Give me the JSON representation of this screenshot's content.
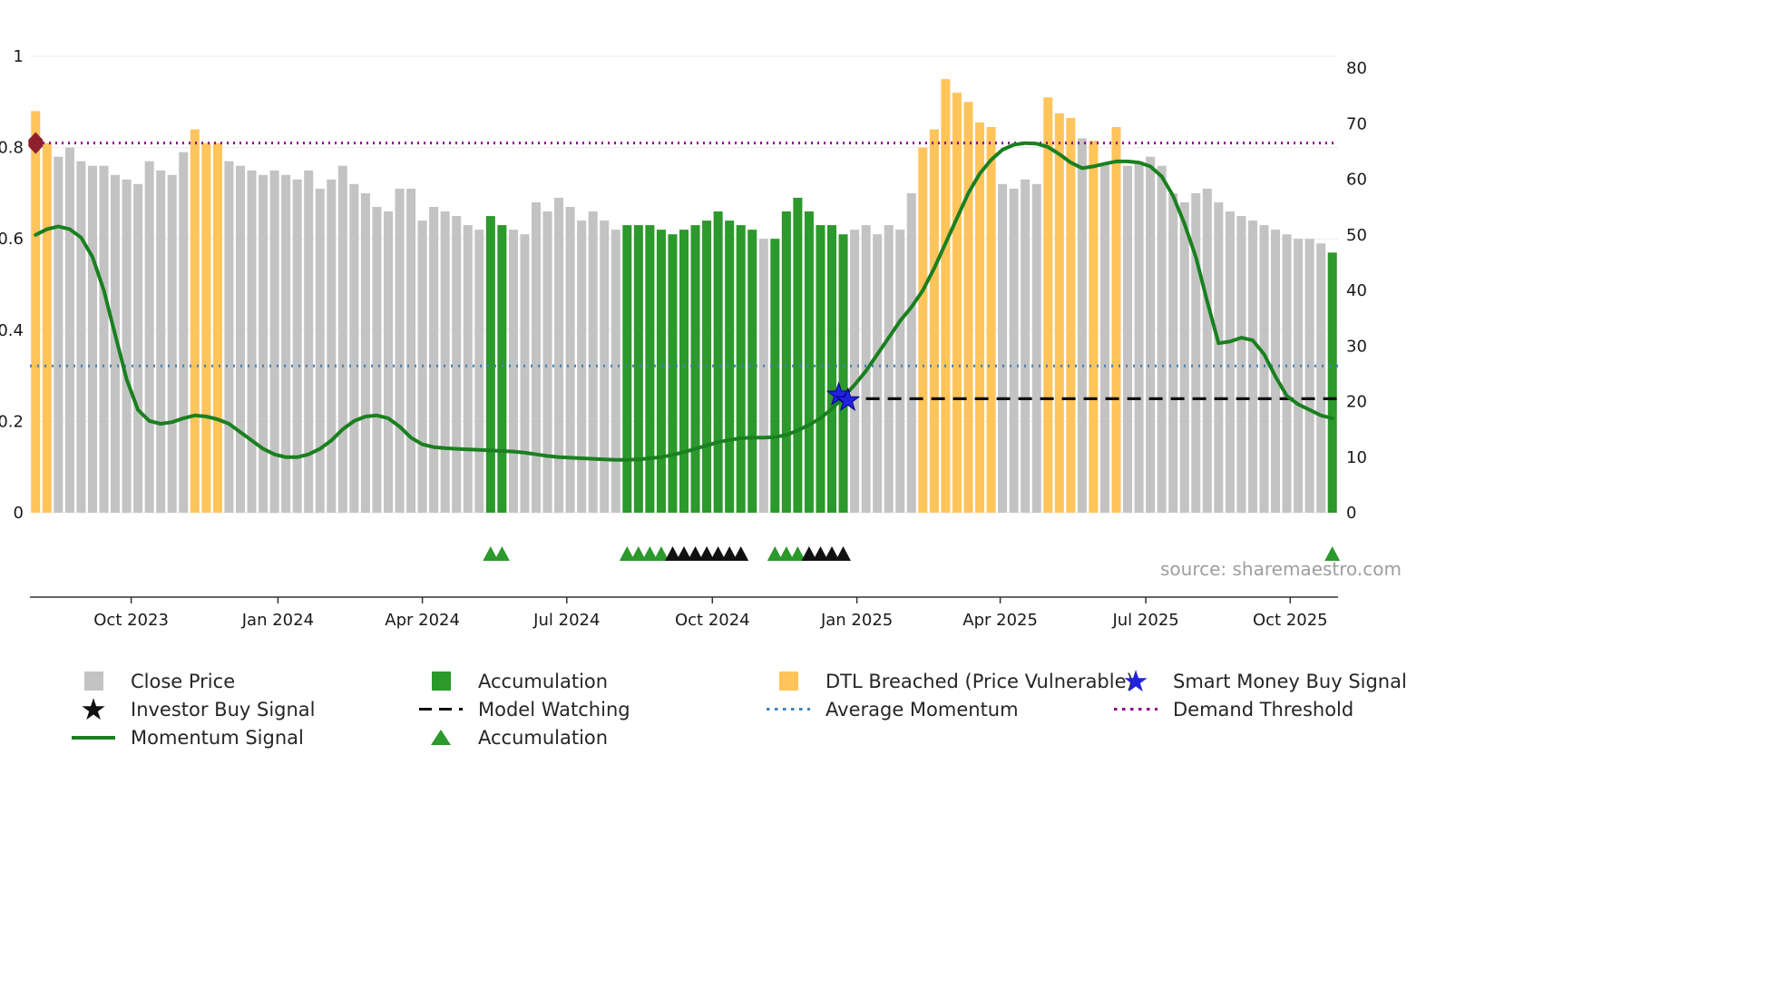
{
  "chart_data": {
    "type": "bar+line",
    "title": "",
    "source": "source: sharemaestro.com",
    "left_axis": {
      "min": 0,
      "max": 1,
      "tick_values": [
        0,
        0.2,
        0.4,
        0.6,
        0.8,
        1
      ],
      "tick_labels": [
        "0",
        "0.2",
        "0.4",
        "0.6",
        "0.8",
        "1"
      ]
    },
    "right_axis": {
      "min": 0,
      "max": 80,
      "tick_values": [
        0,
        10,
        20,
        30,
        40,
        50,
        60,
        70,
        80
      ],
      "tick_labels": [
        "0",
        "10",
        "20",
        "30",
        "40",
        "50",
        "60",
        "70",
        "80"
      ]
    },
    "x_axis": {
      "tick_labels": [
        "Oct 2023",
        "Jan 2024",
        "Apr 2024",
        "Jul 2024",
        "Oct 2024",
        "Jan 2025",
        "Apr 2025",
        "Jul 2025",
        "Oct 2025"
      ],
      "tick_positions": [
        8.4,
        21.3,
        34.0,
        46.7,
        59.5,
        72.2,
        84.8,
        97.6,
        110.3
      ]
    },
    "bars": {
      "axis": "left",
      "kind_legend": {
        "close": "Close Price",
        "accum": "Accumulation",
        "dtl": "DTL Breached (Price Vulnerable)"
      },
      "kind_runs": [
        [
          2,
          "dtl"
        ],
        [
          12,
          "close"
        ],
        [
          3,
          "dtl"
        ],
        [
          23,
          "close"
        ],
        [
          2,
          "accum"
        ],
        [
          10,
          "close"
        ],
        [
          12,
          "accum"
        ],
        [
          1,
          "close"
        ],
        [
          7,
          "accum"
        ],
        [
          6,
          "close"
        ],
        [
          7,
          "dtl"
        ],
        [
          4,
          "close"
        ],
        [
          3,
          "dtl"
        ],
        [
          1,
          "close"
        ],
        [
          1,
          "dtl"
        ],
        [
          1,
          "close"
        ],
        [
          1,
          "dtl"
        ],
        [
          18,
          "close"
        ],
        [
          1,
          "accum"
        ]
      ],
      "values": [
        0.88,
        0.81,
        0.78,
        0.8,
        0.77,
        0.76,
        0.76,
        0.74,
        0.73,
        0.72,
        0.77,
        0.75,
        0.74,
        0.79,
        0.84,
        0.81,
        0.81,
        0.77,
        0.76,
        0.75,
        0.74,
        0.75,
        0.74,
        0.73,
        0.75,
        0.71,
        0.73,
        0.76,
        0.72,
        0.7,
        0.67,
        0.66,
        0.71,
        0.71,
        0.64,
        0.67,
        0.66,
        0.65,
        0.63,
        0.62,
        0.65,
        0.63,
        0.62,
        0.61,
        0.68,
        0.66,
        0.69,
        0.67,
        0.64,
        0.66,
        0.64,
        0.62,
        0.63,
        0.63,
        0.63,
        0.62,
        0.61,
        0.62,
        0.63,
        0.64,
        0.66,
        0.64,
        0.63,
        0.62,
        0.6,
        0.6,
        0.66,
        0.69,
        0.66,
        0.63,
        0.63,
        0.61,
        0.62,
        0.63,
        0.61,
        0.63,
        0.62,
        0.7,
        0.8,
        0.84,
        0.95,
        0.92,
        0.9,
        0.855,
        0.845,
        0.72,
        0.71,
        0.73,
        0.72,
        0.91,
        0.875,
        0.865,
        0.82,
        0.815,
        0.765,
        0.845,
        0.76,
        0.77,
        0.78,
        0.76,
        0.7,
        0.68,
        0.7,
        0.71,
        0.68,
        0.66,
        0.65,
        0.64,
        0.63,
        0.62,
        0.61,
        0.6,
        0.6,
        0.59,
        0.57
      ]
    },
    "momentum": {
      "name": "Momentum Signal",
      "axis": "right",
      "values": [
        50,
        51,
        51.5,
        51,
        49.5,
        46,
        40,
        32,
        24,
        18.5,
        16.5,
        16,
        16.3,
        17,
        17.5,
        17.3,
        16.8,
        16,
        14.5,
        13,
        11.5,
        10.5,
        10,
        10,
        10.5,
        11.5,
        13,
        15,
        16.5,
        17.3,
        17.5,
        17,
        15.5,
        13.5,
        12.3,
        11.8,
        11.6,
        11.5,
        11.4,
        11.3,
        11.2,
        11.1,
        11,
        10.8,
        10.5,
        10.2,
        10,
        9.9,
        9.8,
        9.7,
        9.6,
        9.5,
        9.5,
        9.6,
        9.8,
        10,
        10.4,
        10.9,
        11.5,
        12.1,
        12.7,
        13.1,
        13.4,
        13.5,
        13.5,
        13.6,
        14,
        14.8,
        15.8,
        17,
        18.7,
        20.8,
        23,
        25.5,
        28.5,
        31.5,
        34.5,
        37,
        40,
        44,
        48.5,
        53,
        57.5,
        61,
        63.5,
        65.3,
        66.2,
        66.5,
        66.4,
        65.8,
        64.5,
        63,
        62,
        62.3,
        62.8,
        63.2,
        63.2,
        63,
        62.3,
        60.5,
        57,
        52,
        46,
        38,
        30.5,
        30.8,
        31.5,
        31,
        28.5,
        24.5,
        21,
        19.5,
        18.5,
        17.5,
        17
      ]
    },
    "overlays": {
      "demand_threshold": {
        "name": "Demand Threshold",
        "axis": "left",
        "value": 0.81,
        "color": "#8b008b"
      },
      "average_momentum": {
        "name": "Average Momentum",
        "axis": "right",
        "value": 26.4,
        "color": "#4682b4"
      },
      "model_watching": {
        "name": "Model Watching",
        "axis": "right",
        "value": 20.5,
        "start_index": 73,
        "color": "#111111"
      }
    },
    "markers": {
      "accumulation_triangle_indices": [
        40,
        41,
        52,
        53,
        54,
        55,
        65,
        66,
        67,
        114
      ],
      "investor_triangle_indices": [
        56,
        57,
        58,
        59,
        60,
        61,
        62,
        68,
        69,
        70,
        71
      ],
      "smart_money_star_points": [
        {
          "index": 70.6,
          "value": 21.2
        },
        {
          "index": 71.4,
          "value": 20.2
        }
      ],
      "investor_buy_point": {
        "index": 0,
        "value_left": 0.81
      }
    }
  },
  "colors": {
    "close_price": "#c3c3c3",
    "accumulation": "#2b992b",
    "dtl_breached": "#ffc45a",
    "momentum_signal": "#1a801f",
    "smart_money": "#2222dd",
    "investor": "#111111",
    "investor_buy": "#8e1f2c",
    "axis_text": "#1a1a1a",
    "source_text": "#9e9e9e"
  },
  "legend": {
    "items": [
      {
        "label": "Close Price",
        "swatch": "square",
        "color": "#c3c3c3"
      },
      {
        "label": "Accumulation",
        "swatch": "square",
        "color": "#2b992b"
      },
      {
        "label": "DTL Breached (Price Vulnerable)",
        "swatch": "square",
        "color": "#ffc45a"
      },
      {
        "label": "Smart Money Buy Signal",
        "swatch": "star",
        "color": "#2222dd"
      },
      {
        "label": "Investor Buy Signal",
        "swatch": "star",
        "color": "#111111"
      },
      {
        "label": "Model Watching",
        "swatch": "dashes",
        "color": "#111111"
      },
      {
        "label": "Average Momentum",
        "swatch": "dots",
        "color": "#4682b4"
      },
      {
        "label": "Demand Threshold",
        "swatch": "dots",
        "color": "#8b008b"
      },
      {
        "label": "Momentum Signal",
        "swatch": "line",
        "color": "#1a801f"
      },
      {
        "label": "Accumulation",
        "swatch": "triangle",
        "color": "#2b992b"
      }
    ]
  }
}
